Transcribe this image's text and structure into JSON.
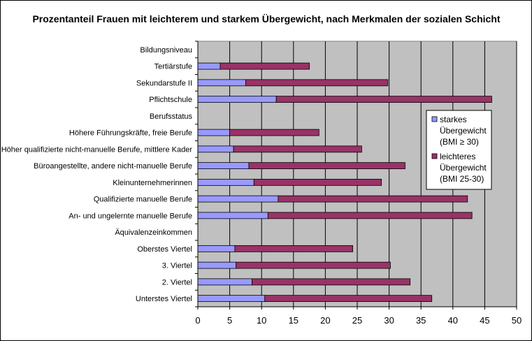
{
  "chart_data": {
    "type": "bar",
    "orientation": "horizontal",
    "stacked": true,
    "title": "Prozentanteil Frauen mit leichterem und starkem Übergewicht, nach Merkmalen der sozialen Schicht",
    "categories": [
      "Bildungsniveau",
      "Tertiärstufe",
      "Sekundarstufe II",
      "Pflichtschule",
      "Berufsstatus",
      "Höhere Führungskräfte, freie Berufe",
      "Höher qualifizierte nicht-manuelle Berufe, mittlere Kader",
      "Büroangestellte, andere nicht-manuelle Berufe",
      "Kleinunternehmerinnen",
      "Qualifizierte manuelle Berufe",
      "An- und ungelernte manuelle Berufe",
      "Äquivalenzeinkommen",
      "Oberstes Viertel",
      "3. Viertel",
      "2. Viertel",
      "Unterstes Viertel"
    ],
    "series": [
      {
        "name": "starkes Übergewicht (BMI ≥ 30)",
        "color": "#9999ff",
        "values": [
          null,
          3.5,
          7.5,
          12.3,
          null,
          5.0,
          5.6,
          8.0,
          8.8,
          12.6,
          11.0,
          null,
          5.8,
          6.0,
          8.5,
          10.5
        ]
      },
      {
        "name": "leichteres Übergewicht (BMI 25-30)",
        "color": "#993366",
        "values": [
          null,
          14.0,
          22.3,
          33.8,
          null,
          14.0,
          20.1,
          24.5,
          20.0,
          29.7,
          32.0,
          null,
          18.5,
          24.2,
          24.8,
          26.2
        ]
      }
    ],
    "xlim": [
      0,
      50
    ],
    "xticks": [
      0,
      5,
      10,
      15,
      20,
      25,
      30,
      35,
      40,
      45,
      50
    ],
    "grid": true,
    "legend_position": "right",
    "legend": [
      [
        "starkes",
        "Übergewicht",
        "(BMI ≥ 30)"
      ],
      [
        "leichteres",
        "Übergewicht",
        "(BMI 25-30)"
      ]
    ],
    "plot_background": "#c0c0c0"
  }
}
